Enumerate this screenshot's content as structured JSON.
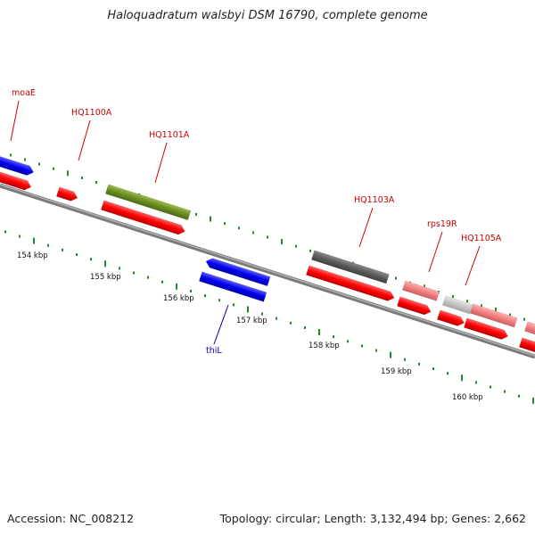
{
  "title": "Haloquadratum walsbyi DSM 16790, complete genome",
  "footer": {
    "accession": "Accession: NC_008212",
    "info": "Topology: circular; Length: 3,132,494 bp; Genes: 2,662"
  },
  "colors": {
    "forward_gene": "#ff0000",
    "reverse_gene": "#0000ff",
    "label_forward": "#cc0000",
    "label_reverse": "#0000aa",
    "backbone": "#808080",
    "ticks": "#228b22",
    "other_feature": "#6b8e23",
    "dark_feature": "#606060",
    "pale_feature": "#f08080",
    "grey_feature": "#c0c0c0"
  },
  "scale_labels": [
    "154 kbp",
    "155 kbp",
    "156 kbp",
    "157 kbp",
    "158 kbp",
    "159 kbp",
    "160 kbp"
  ],
  "gene_labels": [
    {
      "name": "moaE",
      "strand": "forward"
    },
    {
      "name": "HQ1100A",
      "strand": "forward"
    },
    {
      "name": "HQ1101A",
      "strand": "forward"
    },
    {
      "name": "HQ1103A",
      "strand": "forward"
    },
    {
      "name": "rps19R",
      "strand": "forward"
    },
    {
      "name": "HQ1105A",
      "strand": "forward"
    },
    {
      "name": "thiL",
      "strand": "reverse"
    }
  ]
}
